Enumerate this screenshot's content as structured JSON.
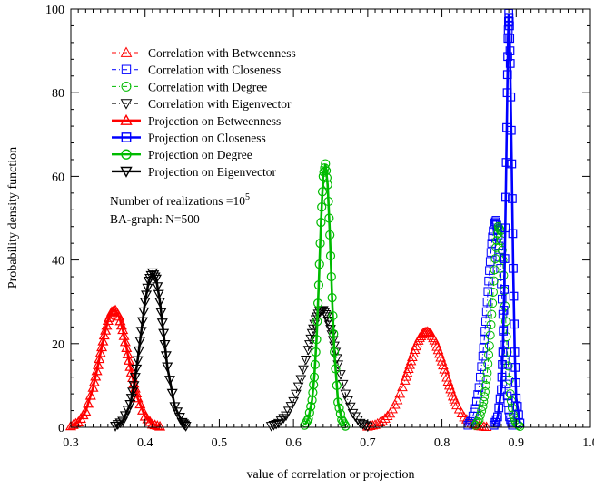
{
  "chart_data": {
    "type": "line",
    "xlabel": "value of correlation or projection",
    "ylabel": "Probability density function",
    "xlim": [
      0.3,
      1.0
    ],
    "ylim": [
      0,
      100
    ],
    "x_ticks": [
      "0.3",
      "0.4",
      "0.5",
      "0.6",
      "0.7",
      "0.8",
      "0.9",
      "1.0"
    ],
    "y_ticks": [
      "0",
      "20",
      "40",
      "60",
      "80",
      "100"
    ],
    "grid": false,
    "legend_position": "top-left",
    "annotations": {
      "realizations_prefix": "Number of realizations =10",
      "realizations_exp": "5",
      "graph": "BA-graph: N=500"
    },
    "series": [
      {
        "name": "Correlation with Betweenness",
        "color": "#ff0000",
        "style": "dash-dot",
        "marker": "triangle-up",
        "width": 1,
        "x": [
          0.7,
          0.71,
          0.72,
          0.73,
          0.74,
          0.75,
          0.755,
          0.76,
          0.765,
          0.77,
          0.775,
          0.78,
          0.785,
          0.79,
          0.795,
          0.8,
          0.805,
          0.81,
          0.815,
          0.82,
          0.83,
          0.84,
          0.85,
          0.86
        ],
        "y": [
          0.2,
          0.6,
          1.5,
          3.3,
          6.5,
          11.2,
          14.0,
          16.8,
          19.4,
          21.4,
          22.6,
          22.9,
          22.4,
          20.8,
          18.5,
          15.8,
          12.9,
          10.0,
          7.4,
          5.3,
          2.4,
          0.9,
          0.3,
          0.1
        ]
      },
      {
        "name": "Correlation with Closeness",
        "color": "#0000ff",
        "style": "dash-dot",
        "marker": "square",
        "width": 1,
        "x": [
          0.835,
          0.84,
          0.845,
          0.85,
          0.855,
          0.858,
          0.861,
          0.864,
          0.867,
          0.87,
          0.873,
          0.876,
          0.879,
          0.882,
          0.885,
          0.888,
          0.891,
          0.895
        ],
        "y": [
          0.5,
          1.8,
          4.5,
          9.5,
          17.0,
          23.0,
          30.0,
          37.5,
          44.0,
          48.5,
          49.5,
          46.0,
          38.0,
          27.0,
          16.0,
          7.5,
          2.5,
          0.5
        ]
      },
      {
        "name": "Correlation with Degree",
        "color": "#00bb00",
        "style": "dash-dot",
        "marker": "circle",
        "width": 1,
        "x": [
          0.845,
          0.85,
          0.855,
          0.858,
          0.861,
          0.864,
          0.867,
          0.87,
          0.873,
          0.876,
          0.879,
          0.882,
          0.885,
          0.888,
          0.892,
          0.896,
          0.9,
          0.905
        ],
        "y": [
          0.5,
          1.8,
          5.0,
          8.5,
          13.0,
          19.5,
          27.0,
          35.0,
          43.0,
          48.0,
          47.0,
          40.0,
          29.0,
          18.0,
          8.0,
          3.0,
          1.0,
          0.2
        ]
      },
      {
        "name": "Correlation with Eigenvector",
        "color": "#000000",
        "style": "dash-dot",
        "marker": "triangle-down",
        "width": 1,
        "x": [
          0.57,
          0.58,
          0.59,
          0.6,
          0.61,
          0.62,
          0.625,
          0.63,
          0.635,
          0.64,
          0.645,
          0.65,
          0.655,
          0.66,
          0.67,
          0.68,
          0.69,
          0.7
        ],
        "y": [
          0.3,
          1.0,
          2.8,
          6.2,
          11.5,
          18.5,
          22.5,
          25.8,
          27.8,
          28.0,
          26.5,
          23.5,
          19.5,
          15.0,
          8.0,
          3.4,
          1.0,
          0.2
        ]
      },
      {
        "name": "Projection on Betweenness",
        "color": "#ff0000",
        "style": "solid",
        "marker": "triangle-up",
        "width": 2.6,
        "x": [
          0.3,
          0.31,
          0.32,
          0.33,
          0.335,
          0.34,
          0.345,
          0.35,
          0.355,
          0.36,
          0.365,
          0.37,
          0.375,
          0.38,
          0.385,
          0.39,
          0.4,
          0.41,
          0.42
        ],
        "y": [
          0.3,
          1.2,
          3.8,
          9.5,
          13.5,
          17.8,
          22.0,
          25.5,
          27.6,
          28.0,
          26.5,
          23.3,
          19.0,
          14.5,
          10.5,
          7.0,
          2.6,
          0.7,
          0.2
        ]
      },
      {
        "name": "Projection on Closeness",
        "color": "#0000ff",
        "style": "solid",
        "marker": "square",
        "width": 2.6,
        "x": [
          0.87,
          0.875,
          0.88,
          0.882,
          0.884,
          0.886,
          0.888,
          0.889,
          0.89,
          0.891,
          0.892,
          0.894,
          0.896,
          0.898,
          0.9,
          0.905
        ],
        "y": [
          0.5,
          2.5,
          9.0,
          18.0,
          33.0,
          55.0,
          80.0,
          93.0,
          99.0,
          96.0,
          87.0,
          63.0,
          38.0,
          18.0,
          7.0,
          1.0
        ]
      },
      {
        "name": "Projection on Degree",
        "color": "#00bb00",
        "style": "solid",
        "marker": "circle",
        "width": 2.6,
        "x": [
          0.615,
          0.62,
          0.625,
          0.628,
          0.631,
          0.634,
          0.637,
          0.64,
          0.643,
          0.646,
          0.649,
          0.652,
          0.655,
          0.66,
          0.665,
          0.67
        ],
        "y": [
          0.5,
          2.0,
          6.5,
          12.0,
          21.0,
          34.0,
          49.0,
          60.0,
          63.0,
          58.0,
          46.0,
          31.0,
          18.0,
          6.0,
          1.8,
          0.3
        ]
      },
      {
        "name": "Projection on Eigenvector",
        "color": "#000000",
        "style": "solid",
        "marker": "triangle-down",
        "width": 2.6,
        "x": [
          0.36,
          0.37,
          0.38,
          0.385,
          0.39,
          0.395,
          0.4,
          0.405,
          0.41,
          0.415,
          0.42,
          0.425,
          0.43,
          0.44,
          0.45,
          0.455
        ],
        "y": [
          0.3,
          1.5,
          5.5,
          10.0,
          16.0,
          23.0,
          30.0,
          35.0,
          37.0,
          35.5,
          30.0,
          22.5,
          14.5,
          5.0,
          1.2,
          0.3
        ]
      }
    ]
  }
}
